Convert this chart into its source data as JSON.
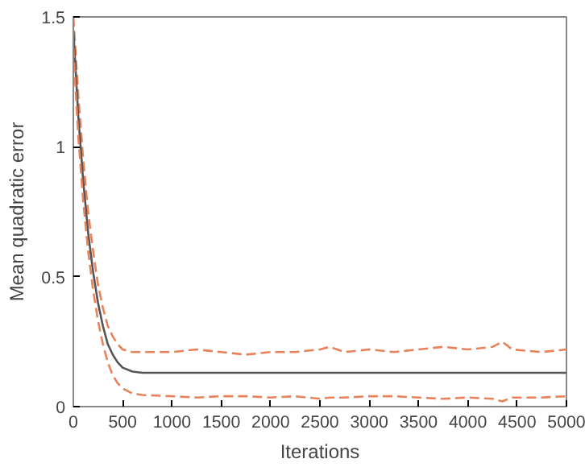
{
  "chart_data": {
    "type": "line",
    "xlabel": "Iterations",
    "ylabel": "Mean quadratic error",
    "x": [
      0,
      50,
      100,
      150,
      200,
      250,
      300,
      350,
      400,
      450,
      500,
      600,
      700,
      1000,
      1250,
      1500,
      1750,
      2000,
      2250,
      2500,
      2600,
      2750,
      3000,
      3250,
      3500,
      3750,
      4000,
      4250,
      4350,
      4450,
      4750,
      5000
    ],
    "series": [
      {
        "color": "#e8825a",
        "line_style": "dashed",
        "values": [
          1.5,
          1.2,
          0.95,
          0.75,
          0.6,
          0.47,
          0.38,
          0.31,
          0.27,
          0.24,
          0.22,
          0.21,
          0.21,
          0.21,
          0.22,
          0.21,
          0.2,
          0.21,
          0.21,
          0.22,
          0.23,
          0.21,
          0.22,
          0.21,
          0.22,
          0.23,
          0.22,
          0.23,
          0.25,
          0.22,
          0.21,
          0.22
        ]
      },
      {
        "color": "#555555",
        "line_style": "solid",
        "values": [
          1.45,
          1.12,
          0.87,
          0.67,
          0.52,
          0.4,
          0.31,
          0.24,
          0.2,
          0.17,
          0.15,
          0.135,
          0.13,
          0.13,
          0.13,
          0.13,
          0.13,
          0.13,
          0.13,
          0.13,
          0.13,
          0.13,
          0.13,
          0.13,
          0.13,
          0.13,
          0.13,
          0.13,
          0.13,
          0.13,
          0.13,
          0.13
        ]
      },
      {
        "color": "#e8825a",
        "line_style": "dashed",
        "values": [
          1.38,
          1.04,
          0.79,
          0.6,
          0.45,
          0.33,
          0.24,
          0.17,
          0.12,
          0.09,
          0.07,
          0.05,
          0.045,
          0.04,
          0.035,
          0.04,
          0.04,
          0.035,
          0.04,
          0.03,
          0.035,
          0.035,
          0.04,
          0.04,
          0.035,
          0.03,
          0.035,
          0.03,
          0.02,
          0.035,
          0.035,
          0.04
        ]
      }
    ],
    "xlim": [
      0,
      5000
    ],
    "ylim": [
      0,
      1.5
    ],
    "xticks": [
      0,
      500,
      1000,
      1500,
      2000,
      2500,
      3000,
      3500,
      4000,
      4500,
      5000
    ],
    "yticks": [
      0,
      0.5,
      1,
      1.5
    ],
    "grid": false
  }
}
